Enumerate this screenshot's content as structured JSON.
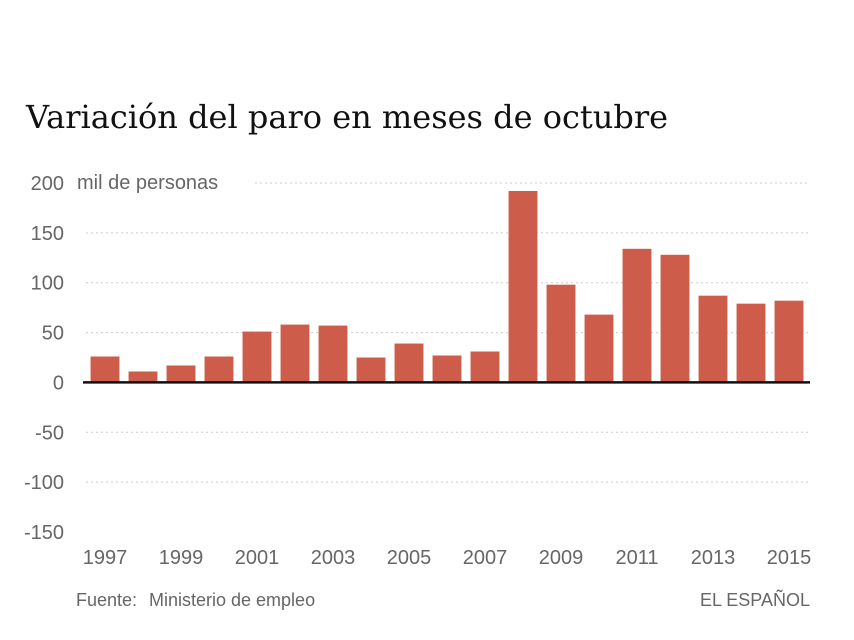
{
  "chart_data": {
    "type": "bar",
    "title": "Variación del paro en meses de octubre",
    "ylabel": "mil de personas",
    "xlabel": "",
    "ylim": [
      -150,
      200
    ],
    "yticks": [
      200,
      150,
      100,
      50,
      0,
      -50,
      -100,
      -150
    ],
    "grid": true,
    "categories": [
      "1997",
      "1998",
      "1999",
      "2000",
      "2001",
      "2002",
      "2003",
      "2004",
      "2005",
      "2006",
      "2007",
      "2008",
      "2009",
      "2010",
      "2011",
      "2012",
      "2013",
      "2014",
      "2015"
    ],
    "xtick_labels": [
      "1997",
      "1999",
      "2001",
      "2003",
      "2005",
      "2007",
      "2009",
      "2011",
      "2013",
      "2015"
    ],
    "values": [
      26,
      11,
      17,
      26,
      51,
      58,
      57,
      25,
      39,
      27,
      31,
      192,
      98,
      68,
      134,
      128,
      87,
      79,
      82
    ],
    "bar_color": "#cd5d4a"
  },
  "footer": {
    "source_label": "Fuente:",
    "source_value": "Ministerio de empleo",
    "brand": "EL ESPAÑOL"
  }
}
